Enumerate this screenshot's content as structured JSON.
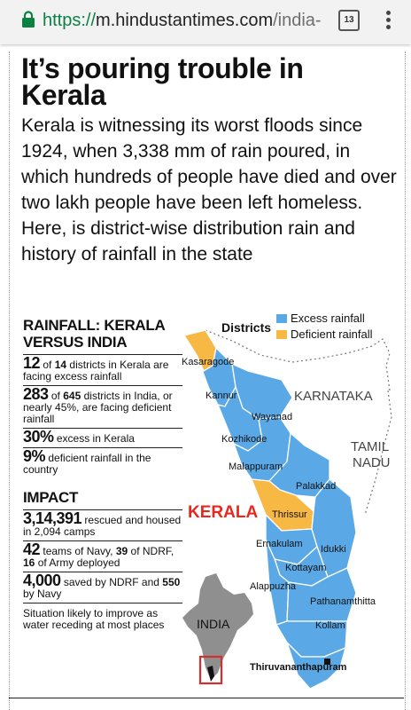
{
  "browser": {
    "url_scheme": "https://",
    "url_host": "m.hindustantimes.com",
    "url_path": "/india-",
    "tab_count": "13",
    "lock_icon": "lock-icon",
    "menu_icon": "more-vert-icon"
  },
  "article": {
    "headline_line1": "It’s pouring trouble in",
    "headline_line2": "Kerala",
    "intro": "Kerala is witnessing its worst floods since 1924, when 3,338 mm of rain poured, in which hundreds of people have died and over two lakh people have been left homeless. Here, is district-wise distribution rain and history of rainfall in the state"
  },
  "infographic": {
    "rainfall_title_line1": "RAINFALL: KERALA",
    "rainfall_title_line2": "VERSUS INDIA",
    "stats": [
      {
        "num": "12",
        "text_a": " of ",
        "strong": "14",
        "text_b": " districts in Kerala are facing excess rainfall"
      },
      {
        "num": "283",
        "text_a": " of ",
        "strong": "645",
        "text_b": " districts in India, or nearly 45%, are facing deficient rainfall"
      },
      {
        "num": "30%",
        "text_b": " excess in Kerala"
      },
      {
        "num": "9%",
        "text_b": " deficient rainfall in the country"
      }
    ],
    "impact_title": "IMPACT",
    "impact": [
      {
        "num": "3,14,391",
        "text": " rescued and housed in 2,094 camps"
      },
      {
        "num": "42",
        "text": " teams of Navy, ",
        "strong": "39",
        "text2": " of NDRF, ",
        "strong2": "16",
        "text3": " of Army deployed"
      },
      {
        "num": "4,000",
        "text": " saved by NDRF and ",
        "strong": "550",
        "text2": " by Navy"
      },
      {
        "note": "Situation likely to improve as water receding at most places"
      }
    ],
    "legend": {
      "title": "Districts",
      "excess": "Excess rainfall",
      "deficient": "Deficient rainfall"
    },
    "colors": {
      "excess": "#5aa9e6",
      "deficient": "#f7b844",
      "outline": "#ffffff",
      "state_label": "#e8281e",
      "locator_box": "#d32f2f"
    },
    "map_labels": {
      "state": "KERALA",
      "karnataka": "KARNATAKA",
      "tamil1": "TAMIL",
      "tamil2": "NADU",
      "india": "INDIA"
    },
    "districts": [
      {
        "name": "Kasaragode",
        "status": "deficient"
      },
      {
        "name": "Kannur",
        "status": "excess"
      },
      {
        "name": "Wayanad",
        "status": "excess"
      },
      {
        "name": "Kozhikode",
        "status": "excess"
      },
      {
        "name": "Malappuram",
        "status": "excess"
      },
      {
        "name": "Palakkad",
        "status": "excess"
      },
      {
        "name": "Thrissur",
        "status": "deficient"
      },
      {
        "name": "Ernakulam",
        "status": "excess"
      },
      {
        "name": "Idukki",
        "status": "excess"
      },
      {
        "name": "Kottayam",
        "status": "excess"
      },
      {
        "name": "Alappuzha",
        "status": "excess"
      },
      {
        "name": "Pathanamthitta",
        "status": "excess"
      },
      {
        "name": "Kollam",
        "status": "excess"
      },
      {
        "name": "Thiruvananthapuram",
        "status": "excess"
      }
    ]
  }
}
